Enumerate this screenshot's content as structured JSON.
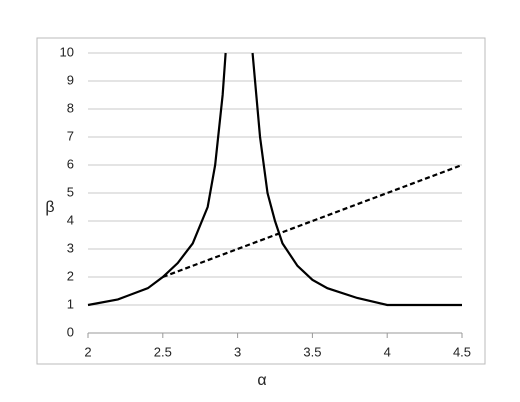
{
  "chart_data": {
    "type": "line",
    "xlabel": "α",
    "ylabel": "β",
    "xlim": [
      2,
      4.5
    ],
    "xticks": [
      2,
      2.5,
      3,
      3.5,
      4,
      4.5
    ],
    "ylim": [
      0,
      10
    ],
    "yticks": [
      0,
      1,
      2,
      3,
      4,
      5,
      6,
      7,
      8,
      9,
      10
    ],
    "grid": true,
    "series": [
      {
        "color": "#000000",
        "dash": false,
        "x": [
          2,
          2.2,
          2.4,
          2.5,
          2.6,
          2.7,
          2.8,
          2.85,
          2.9,
          2.92,
          null,
          3.1,
          3.15,
          3.2,
          3.25,
          3.3,
          3.4,
          3.5,
          3.6,
          3.8,
          4,
          4.5
        ],
        "values": [
          1,
          1.2,
          1.6,
          2,
          2.5,
          3.2,
          4.5,
          6,
          8.5,
          10,
          null,
          10,
          7,
          5,
          4,
          3.2,
          2.4,
          1.9,
          1.6,
          1.25,
          1,
          1
        ]
      },
      {
        "color": "#000000",
        "dash": true,
        "x": [
          2.5,
          4.5
        ],
        "values": [
          2,
          6
        ]
      }
    ]
  }
}
